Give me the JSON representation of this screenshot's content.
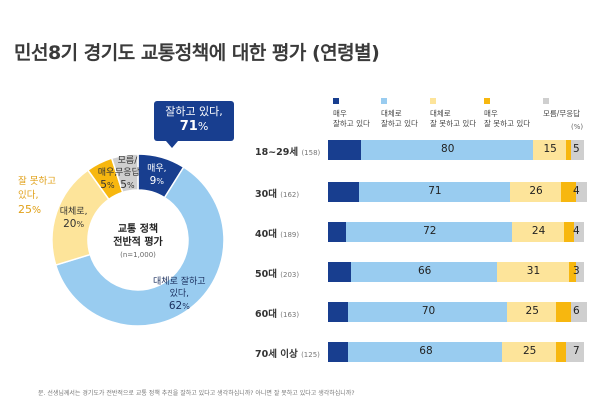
{
  "title": "민선8기 경기도 교통정책에 대한 평가 (연령별)",
  "colors": {
    "very_good": "#183e8f",
    "mostly_good": "#99ccf0",
    "mostly_bad": "#fde49a",
    "very_bad": "#f7b70f",
    "dont_know": "#cfcfcf",
    "callout": "#183e8f",
    "negative_note": "#e0a018"
  },
  "callout": {
    "label": "잘하고 있다,",
    "value": "71",
    "pct": "%"
  },
  "leftnote": {
    "line1": "잘 못하고",
    "line2": "있다,",
    "value": "25",
    "pct": "%"
  },
  "donut_center": {
    "line1": "교통 정책",
    "line2": "전반적 평가",
    "sub": "(n=1,000)"
  },
  "legend": {
    "very_good": [
      "매우",
      "잘하고 있다"
    ],
    "mostly_good": [
      "대체로",
      "잘하고 있다"
    ],
    "mostly_bad": [
      "대체로",
      "잘 못하고 있다"
    ],
    "very_bad": [
      "매우",
      "잘 못하고 있다"
    ],
    "dont_know": [
      "모름/무응답"
    ]
  },
  "unit": "(%)",
  "footnote": "문. 선생님께서는 경기도가 전반적으로 교통 정책 추진을 잘하고 있다고 생각하십니까? 아니면 잘 못하고 있다고 생각하십니까?",
  "chart_data": [
    {
      "type": "pie",
      "labels": [
        "매우 잘하고 있다",
        "대체로 잘하고 있다",
        "대체로 잘 못하고 있다",
        "매우 잘 못하고 있다",
        "모름/무응답"
      ],
      "values": [
        9,
        62,
        20,
        5,
        5
      ],
      "value_labels": [
        [
          "매우,",
          "9"
        ],
        [
          "대체로 잘하고",
          "있다,",
          "62"
        ],
        [
          "대체로,",
          "20"
        ],
        [
          "매우,",
          "5"
        ],
        [
          "모름/",
          "무응답",
          "5"
        ]
      ]
    },
    {
      "type": "bar",
      "orientation": "horizontal",
      "stacked": true,
      "categories": [
        "18~29세",
        "30대",
        "40대",
        "50대",
        "60대",
        "70세 이상"
      ],
      "n_labels": [
        "(158)",
        "(162)",
        "(189)",
        "(203)",
        "(163)",
        "(125)"
      ],
      "xlim": [
        0,
        100
      ],
      "series": [
        {
          "name": "매우 잘하고 있다",
          "values": [
            13,
            12,
            7,
            9,
            8,
            8
          ]
        },
        {
          "name": "대체로 잘하고 있다",
          "values": [
            67,
            59,
            65,
            57,
            62,
            60
          ],
          "labels": [
            "80",
            "71",
            "72",
            "66",
            "70",
            "68"
          ]
        },
        {
          "name": "대체로 잘 못하고 있다",
          "values": [
            13,
            20,
            20,
            28,
            19,
            21
          ],
          "labels": [
            "15",
            "26",
            "24",
            "31",
            "25",
            "25"
          ]
        },
        {
          "name": "매우 잘 못하고 있다",
          "values": [
            2,
            6,
            4,
            3,
            6,
            4
          ]
        },
        {
          "name": "모름/무응답",
          "values": [
            5,
            4,
            4,
            3,
            6,
            7
          ],
          "labels": [
            "5",
            "4",
            "4",
            "3",
            "6",
            "7"
          ]
        }
      ]
    }
  ]
}
